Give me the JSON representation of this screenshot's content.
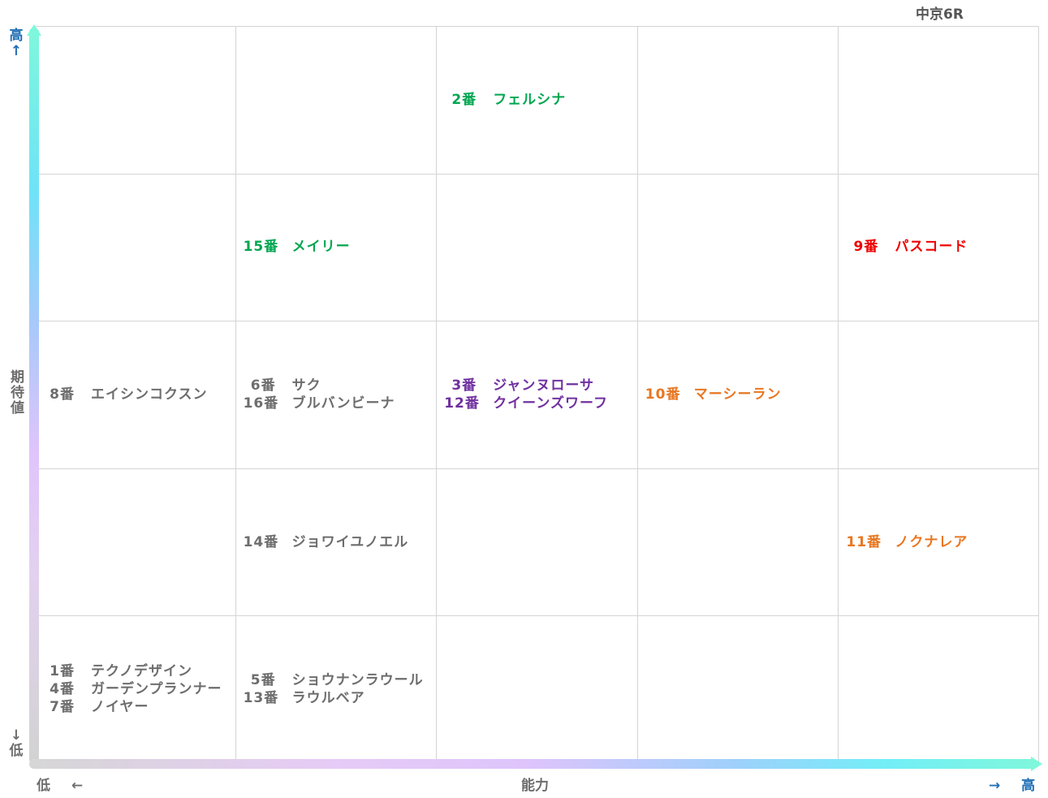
{
  "title": "中京6R",
  "axes": {
    "y_label": "期待値",
    "y_high_label": "高",
    "y_high_arrow": "↑",
    "y_low_label": "低",
    "y_low_arrow": "↓",
    "x_label": "能力",
    "x_low_label": "低",
    "x_low_arrow": "←",
    "x_high_label": "高",
    "x_high_arrow": "→"
  },
  "colors": {
    "gray": "#6d6d6d",
    "green": "#00a650",
    "red": "#ee0000",
    "purple": "#7030a0",
    "orange": "#e87722",
    "axis_label_blue": "#1f6fb5"
  },
  "chart_data": {
    "type": "table",
    "x_axis": "能力",
    "y_axis": "期待値",
    "columns": 5,
    "rows": 5,
    "cells": [
      {
        "col": 3,
        "row": 5,
        "color": "green",
        "entries": [
          {
            "num": "2番",
            "name": "フェルシナ"
          }
        ]
      },
      {
        "col": 2,
        "row": 4,
        "color": "green",
        "entries": [
          {
            "num": "15番",
            "name": "メイリー"
          }
        ]
      },
      {
        "col": 5,
        "row": 4,
        "color": "red",
        "entries": [
          {
            "num": "9番",
            "name": "パスコード"
          }
        ]
      },
      {
        "col": 1,
        "row": 3,
        "color": "gray",
        "entries": [
          {
            "num": "8番",
            "name": "エイシンコクスン"
          }
        ]
      },
      {
        "col": 2,
        "row": 3,
        "color": "gray",
        "entries": [
          {
            "num": "6番",
            "name": "サク"
          },
          {
            "num": "16番",
            "name": "ブルバンビーナ"
          }
        ]
      },
      {
        "col": 3,
        "row": 3,
        "color": "purple",
        "entries": [
          {
            "num": "3番",
            "name": "ジャンヌローサ"
          },
          {
            "num": "12番",
            "name": "クイーンズワーフ"
          }
        ]
      },
      {
        "col": 4,
        "row": 3,
        "color": "orange",
        "entries": [
          {
            "num": "10番",
            "name": "マーシーラン"
          }
        ]
      },
      {
        "col": 2,
        "row": 2,
        "color": "gray",
        "entries": [
          {
            "num": "14番",
            "name": "ジョワイユノエル"
          }
        ]
      },
      {
        "col": 5,
        "row": 2,
        "color": "orange",
        "entries": [
          {
            "num": "11番",
            "name": "ノクナレア"
          }
        ]
      },
      {
        "col": 1,
        "row": 1,
        "color": "gray",
        "entries": [
          {
            "num": "1番",
            "name": "テクノデザイン"
          },
          {
            "num": "4番",
            "name": "ガーデンプランナー"
          },
          {
            "num": "7番",
            "name": "ノイヤー"
          }
        ]
      },
      {
        "col": 2,
        "row": 1,
        "color": "gray",
        "entries": [
          {
            "num": "5番",
            "name": "ショウナンラウール"
          },
          {
            "num": "13番",
            "name": "ラウルベア"
          }
        ]
      }
    ]
  }
}
